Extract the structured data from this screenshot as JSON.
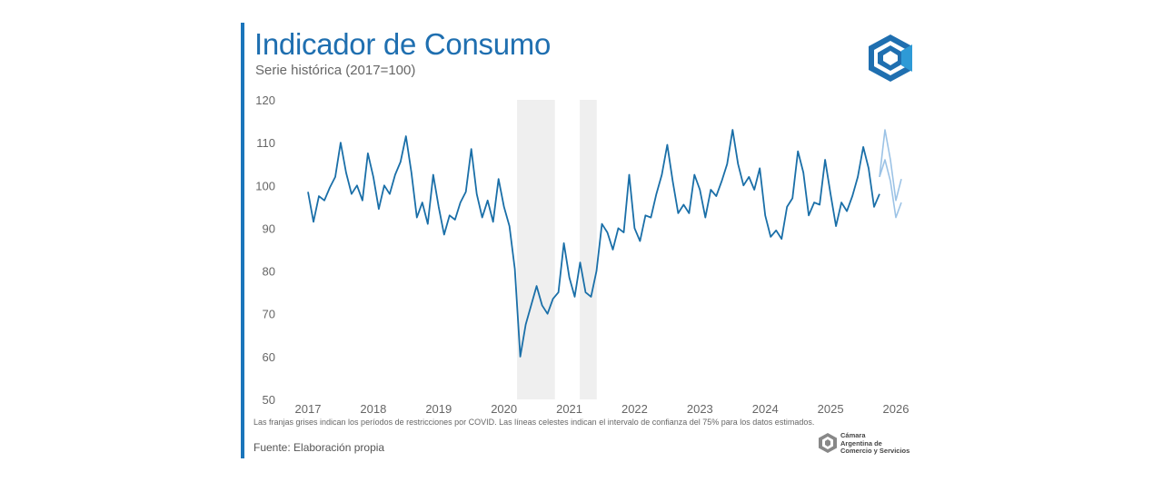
{
  "header": {
    "title": "Indicador de Consumo",
    "subtitle": "Serie histórica (2017=100)"
  },
  "footer": {
    "note": "Las franjas grises indican los períodos de restricciones por COVID. Las líneas celestes indican el intervalo de confianza del 75% para los datos estimados.",
    "source": "Fuente: Elaboración propia",
    "brand_lines": [
      "Cámara",
      "Argentina de",
      "Comercio y Servicios"
    ]
  },
  "colors": {
    "accent": "#1a75bb",
    "series": "#1a6fa8",
    "confidence": "#9cc3e6",
    "covid_band": "#efefef"
  },
  "chart_data": {
    "type": "line",
    "title": "Indicador de Consumo",
    "subtitle": "Serie histórica (2017=100)",
    "xlabel": "",
    "ylabel": "",
    "ylim": [
      50,
      120
    ],
    "xlim": [
      2017,
      2026
    ],
    "y_ticks": [
      50,
      60,
      70,
      80,
      90,
      100,
      110,
      120
    ],
    "x_ticks": [
      2017,
      2018,
      2019,
      2020,
      2021,
      2022,
      2023,
      2024,
      2025,
      2026
    ],
    "grid": false,
    "legend": "none",
    "start": "2017-01",
    "frequency": "monthly",
    "covid_bands": [
      {
        "start": 2020.2,
        "end": 2020.78
      },
      {
        "start": 2021.16,
        "end": 2021.42
      }
    ],
    "series": [
      {
        "name": "Indicador de Consumo",
        "values": [
          98.5,
          91.5,
          97.5,
          96.5,
          99.5,
          102,
          110,
          103,
          98,
          100,
          96.5,
          107.5,
          102,
          94.5,
          100,
          98,
          102.5,
          105.5,
          111.5,
          103,
          92.5,
          96,
          91,
          102.5,
          95,
          88.5,
          93,
          92,
          96,
          98.5,
          108.5,
          98,
          92.5,
          96.5,
          91.5,
          101.5,
          95,
          90.5,
          80.5,
          60,
          67.5,
          72,
          76.5,
          72,
          70,
          73.5,
          75,
          86.5,
          78.5,
          74,
          82,
          75,
          74,
          80,
          91,
          89,
          85,
          90,
          89,
          102.5,
          90,
          87,
          93,
          92.5,
          98,
          102.5,
          109.5,
          101,
          93.5,
          95.5,
          93.5,
          102.5,
          99,
          92.5,
          99,
          97.5,
          101,
          105,
          113,
          105,
          100,
          102,
          99,
          104,
          93,
          88,
          89.5,
          87.5,
          95,
          97,
          108,
          103,
          93,
          96,
          95.5,
          106,
          98,
          90.5,
          96,
          94,
          97.5,
          102,
          109,
          104,
          95,
          98
        ]
      },
      {
        "name": "IC 75% superior",
        "x_start_index": 105,
        "values": [
          102,
          113,
          106,
          96.5,
          101.5
        ]
      },
      {
        "name": "IC 75% inferior",
        "x_start_index": 105,
        "values": [
          102,
          106,
          101,
          92.5,
          96
        ]
      }
    ]
  }
}
